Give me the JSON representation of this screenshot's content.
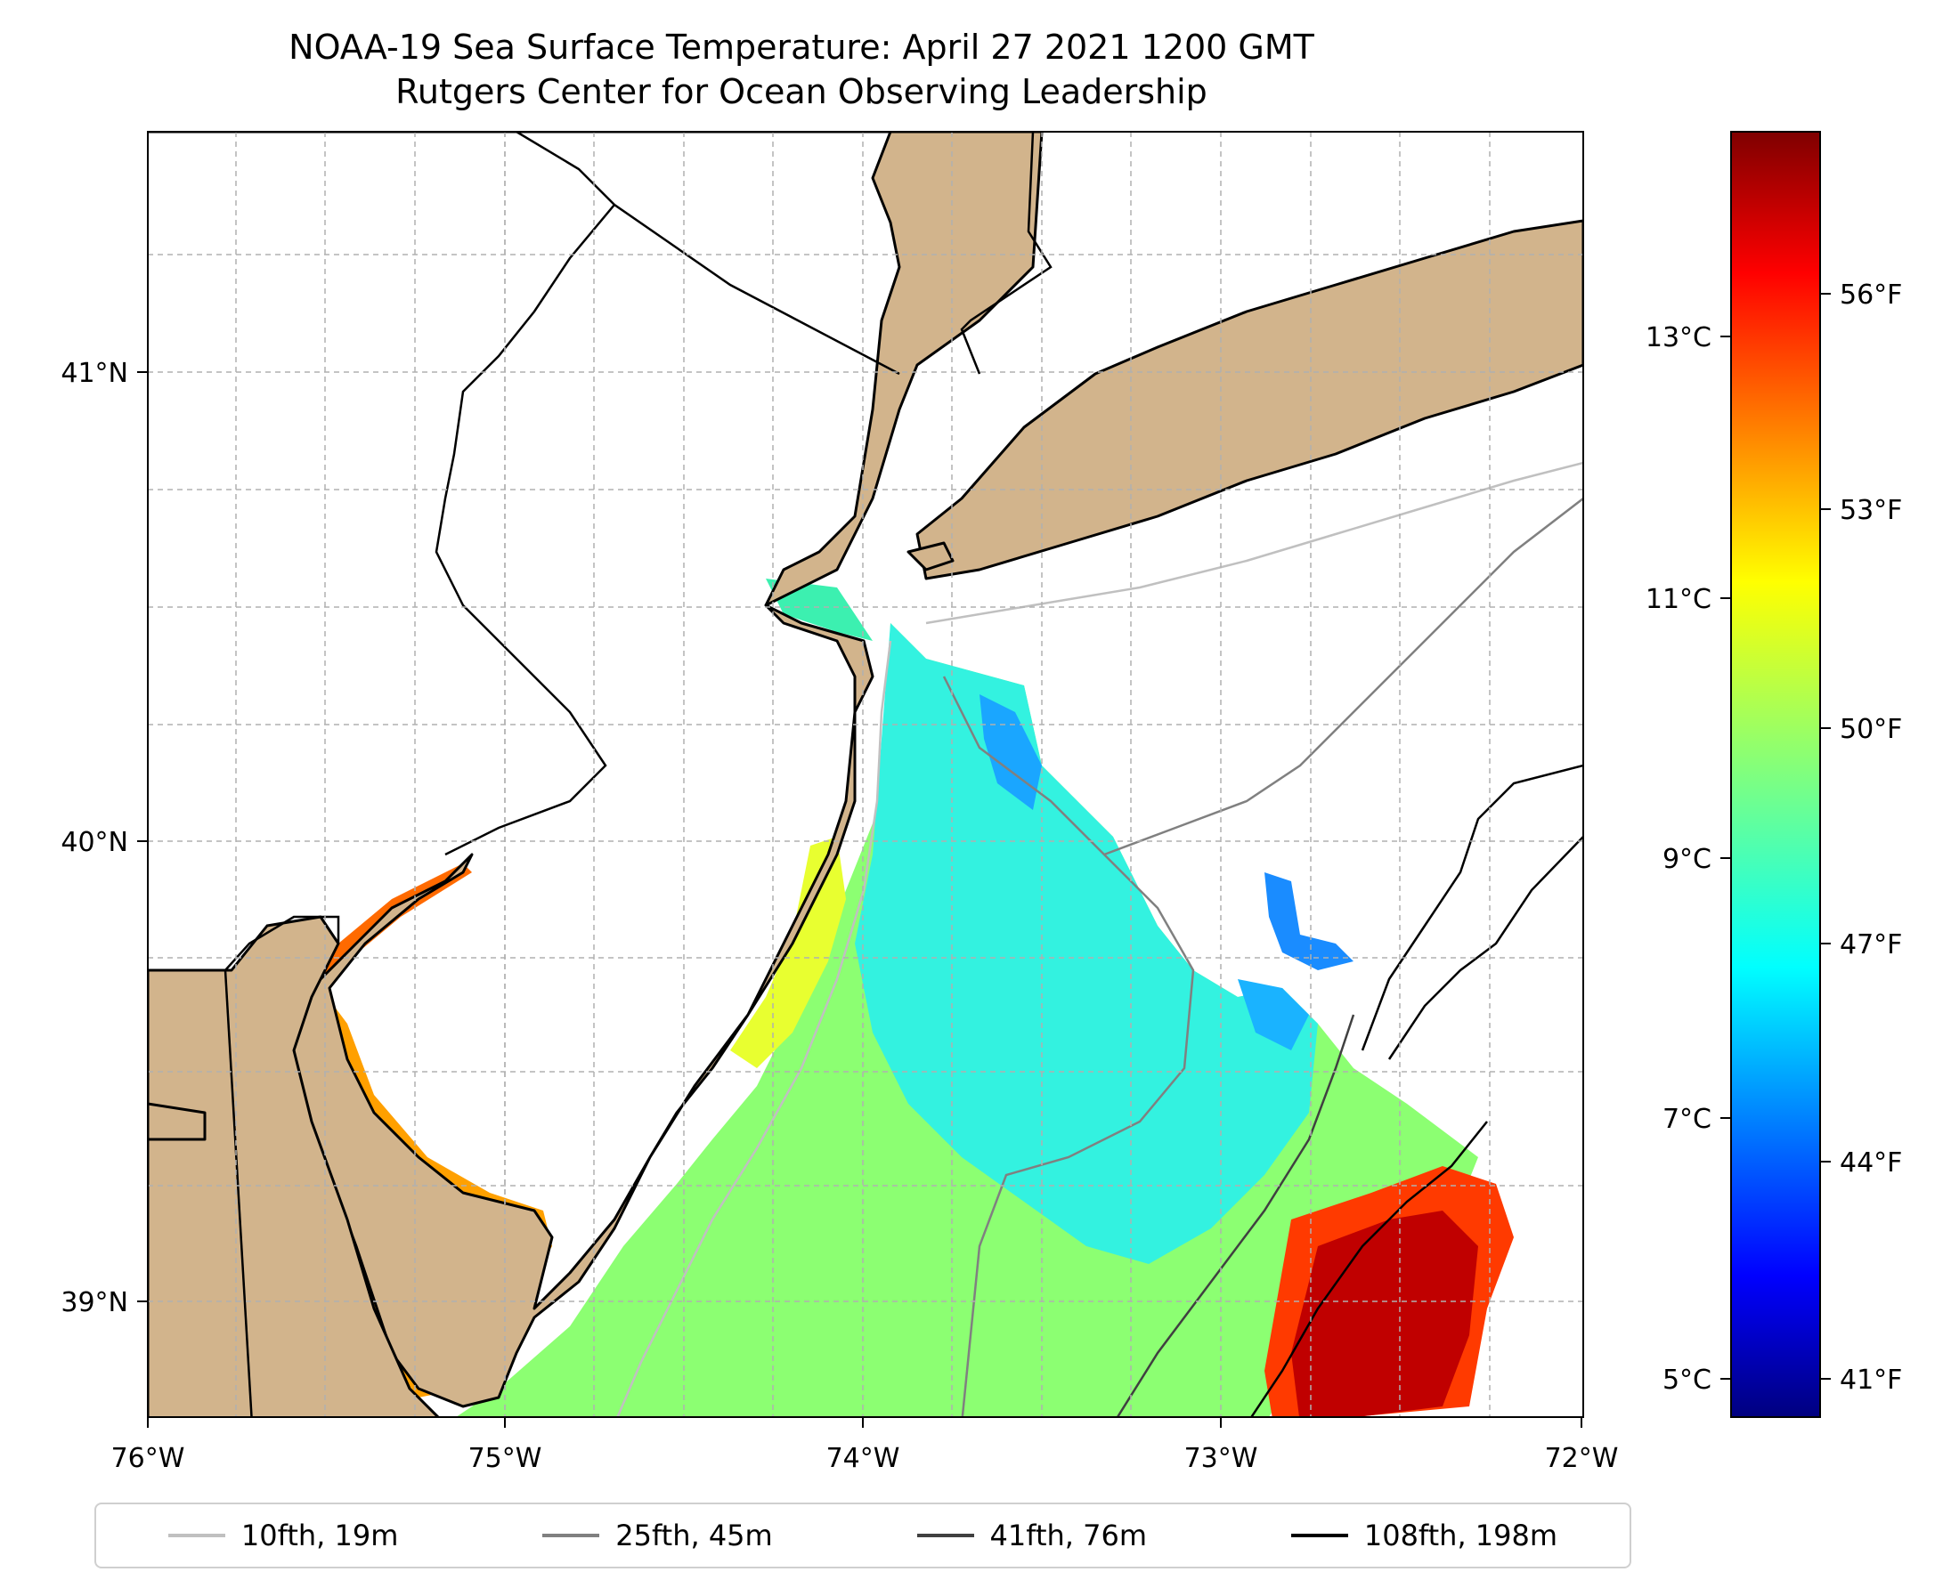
{
  "title": "NOAA-19 Sea Surface Temperature: April 27 2021 1200 GMT",
  "subtitle": "Rutgers Center for Ocean Observing Leadership",
  "map": {
    "lon_ticks": [
      "76°W",
      "75°W",
      "74°W",
      "73°W",
      "72°W"
    ],
    "lat_ticks": [
      "41°N",
      "40°N",
      "39°N"
    ],
    "land_color": "#d2b48c",
    "extent": {
      "lon": [
        -76,
        -72
      ],
      "lat": [
        38.75,
        41.5
      ]
    }
  },
  "colorbar": {
    "colormap": "jet",
    "celsius_ticks": [
      "13°C",
      "11°C",
      "9°C",
      "7°C",
      "5°C"
    ],
    "fahrenheit_ticks": [
      "56°F",
      "53°F",
      "50°F",
      "47°F",
      "44°F",
      "41°F"
    ]
  },
  "legend": [
    {
      "label": "10fth, 19m",
      "color": "#c0c0c0"
    },
    {
      "label": "25fth, 45m",
      "color": "#808080"
    },
    {
      "label": "41fth, 76m",
      "color": "#404040"
    },
    {
      "label": "108fth, 198m",
      "color": "#000000"
    }
  ]
}
